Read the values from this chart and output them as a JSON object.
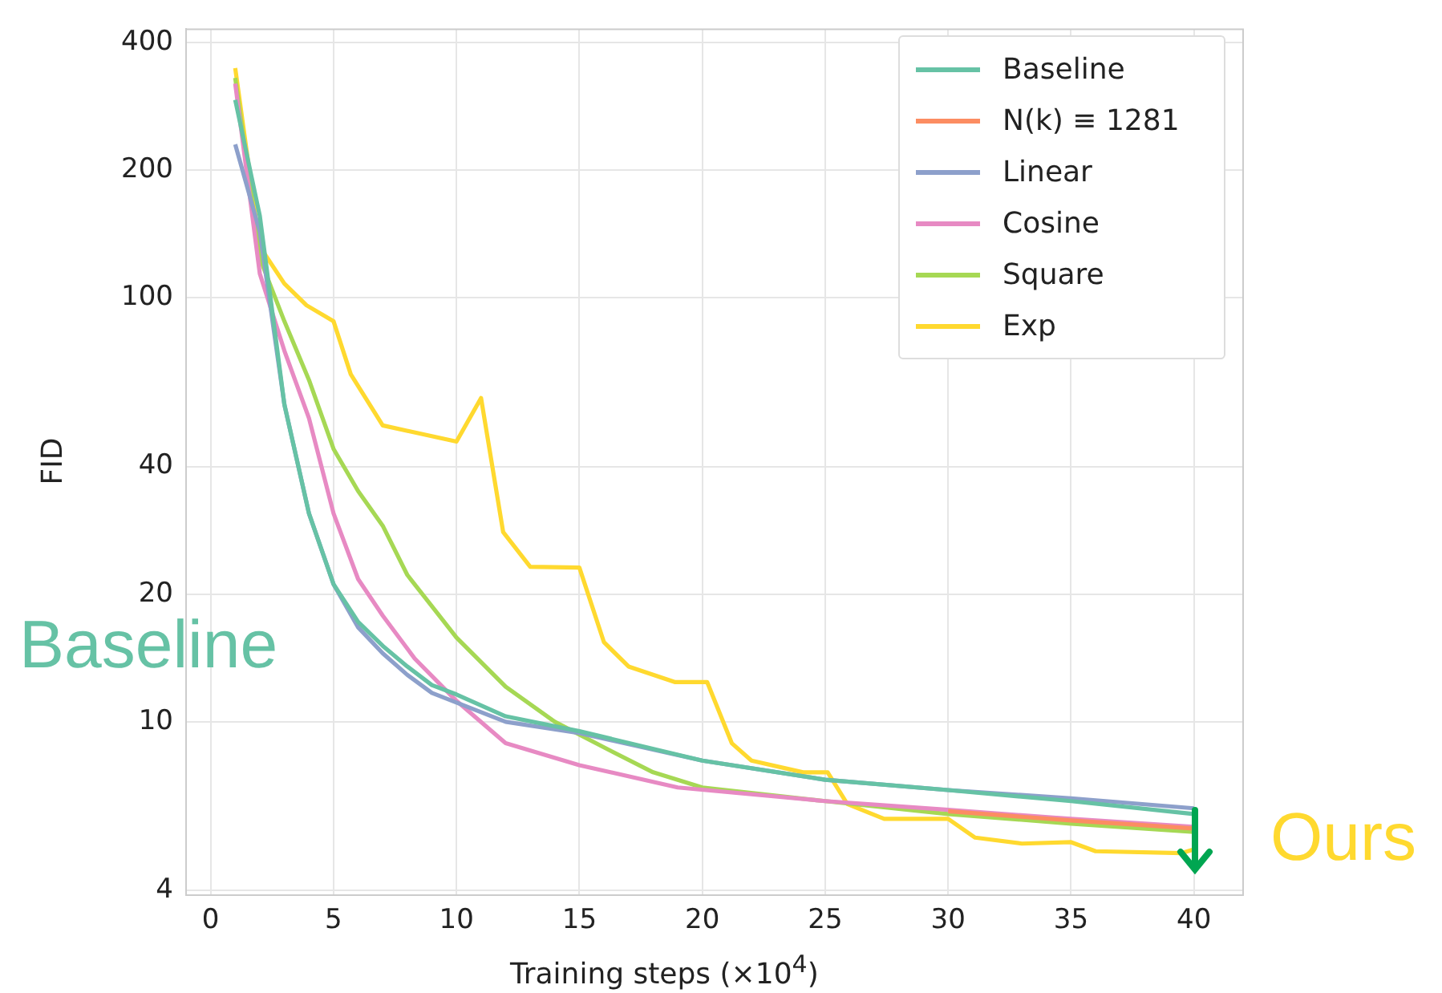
{
  "chart_data": {
    "type": "line",
    "xlabel": "Training steps (×10$^{4}$)",
    "ylabel": "FID",
    "log": "y",
    "grid": true,
    "legend": "top right",
    "marker": "none",
    "line_style": "solid",
    "xlim": [
      -1,
      42
    ],
    "xticks": [
      0,
      5,
      10,
      15,
      20,
      25,
      30,
      35,
      40
    ],
    "ylim": [
      3.9,
      430
    ],
    "yticks": [
      4,
      10,
      20,
      40,
      100,
      200,
      400
    ],
    "series": [
      {
        "name": "Baseline",
        "color": "#66c2a5",
        "x": [
          1,
          2,
          3,
          4,
          5,
          6,
          7,
          8,
          9,
          10,
          12,
          15,
          20,
          25,
          30,
          35,
          40
        ],
        "values": [
          293,
          156,
          56,
          31,
          21.1,
          17.2,
          15.1,
          13.5,
          12.2,
          11.6,
          10.3,
          9.5,
          8.1,
          7.3,
          6.9,
          6.5,
          6.06
        ]
      },
      {
        "name": "N(k) ≡ 1281",
        "color": "#fc8d62",
        "x": [
          30,
          35,
          40
        ],
        "values": [
          6.15,
          5.85,
          5.6
        ]
      },
      {
        "name": "Linear",
        "color": "#8da0cb",
        "x": [
          1,
          2,
          3,
          4,
          5,
          6,
          7,
          8,
          9,
          10,
          12,
          15,
          20,
          25,
          30,
          35,
          40
        ],
        "values": [
          230,
          143,
          56,
          31,
          21.1,
          16.7,
          14.5,
          12.9,
          11.7,
          11.1,
          10,
          9.4,
          8.1,
          7.3,
          6.9,
          6.6,
          6.25
        ]
      },
      {
        "name": "Cosine",
        "color": "#e78ac3",
        "x": [
          1,
          2,
          3,
          4,
          5,
          6,
          7,
          8.3,
          10,
          12,
          15,
          19,
          25,
          30,
          35,
          40
        ],
        "values": [
          320,
          114,
          75,
          52,
          31,
          21.7,
          17.8,
          14.1,
          11.2,
          8.9,
          7.9,
          7,
          6.5,
          6.2,
          5.9,
          5.65
        ]
      },
      {
        "name": "Square",
        "color": "#a6d854",
        "x": [
          1,
          2,
          3,
          4,
          5,
          6,
          7,
          8,
          10,
          12,
          14,
          16,
          18,
          20,
          25,
          30,
          35,
          40
        ],
        "values": [
          330,
          124,
          88,
          64,
          44,
          35,
          29,
          22.2,
          15.8,
          12.1,
          10,
          8.7,
          7.6,
          7,
          6.5,
          6.06,
          5.75,
          5.5
        ]
      },
      {
        "name": "Exp",
        "color": "#ffd92f",
        "x": [
          1,
          2,
          3,
          3.9,
          5,
          5.7,
          7,
          10,
          11,
          11.9,
          13,
          15,
          16,
          17,
          18.9,
          20.2,
          21.2,
          22,
          24.1,
          25.1,
          25.9,
          27.4,
          30,
          31.1,
          33,
          35,
          36,
          39.5,
          40
        ],
        "values": [
          348,
          132,
          108,
          96,
          88,
          66,
          50,
          45.8,
          58,
          28,
          23.2,
          23.1,
          15.4,
          13.5,
          12.4,
          12.4,
          8.9,
          8.1,
          7.6,
          7.6,
          6.4,
          5.9,
          5.9,
          5.33,
          5.16,
          5.2,
          4.95,
          4.9,
          5
        ]
      }
    ],
    "annotations": [
      "Baseline",
      "Ours"
    ]
  }
}
